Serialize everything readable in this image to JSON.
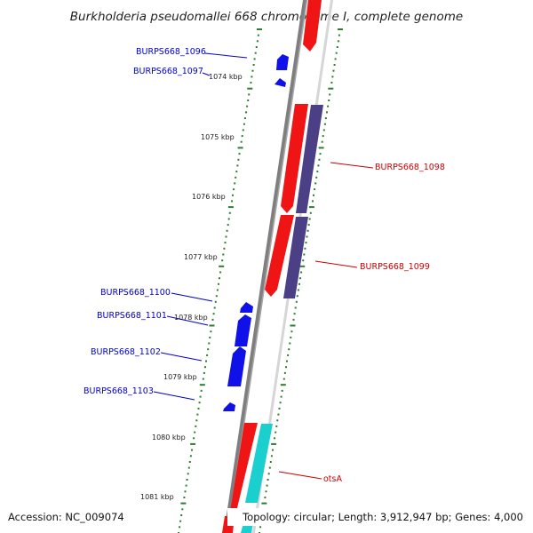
{
  "title": "Burkholderia pseudomallei 668 chromosome I, complete genome",
  "footer": {
    "accession": "Accession: NC_009074",
    "summary": "Topology: circular; Length: 3,912,947 bp; Genes: 4,000"
  },
  "colors": {
    "backbone": "#808080",
    "tick": "#2e7d2e",
    "minus_strand_gene": "#1010e8",
    "plus_strand_gene": "#ef1515",
    "cds_feature": "#4b3f86",
    "rna_feature": "#1ccfcf",
    "label_minus": "#0000cc",
    "label_plus": "#cc0000"
  },
  "scale_labels": [
    "1074 kbp",
    "1075 kbp",
    "1076 kbp",
    "1077 kbp",
    "1078 kbp",
    "1079 kbp",
    "1080 kbp",
    "1081 kbp"
  ],
  "gene_labels": {
    "minus_strand": [
      "BURPS668_1096",
      "BURPS668_1097",
      "BURPS668_1100",
      "BURPS668_1101",
      "BURPS668_1102",
      "BURPS668_1103"
    ],
    "plus_strand": [
      "BURPS668_1098",
      "BURPS668_1099",
      "otsA"
    ]
  }
}
